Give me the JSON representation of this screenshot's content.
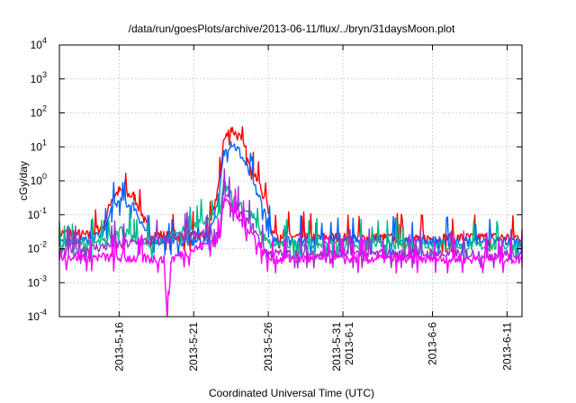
{
  "chart_data": {
    "type": "line",
    "title": "/data/run/goesPlots/archive/2013-06-11/flux/../bryn/31daysMoon.plot",
    "xlabel": "Coordinated Universal Time (UTC)",
    "ylabel": "cGy/day",
    "y_scale": "log",
    "ylim": [
      0.0001,
      10000
    ],
    "xlim": [
      "2013-05-12",
      "2013-06-12"
    ],
    "grid": true,
    "legend": "none",
    "y_ticks": [
      {
        "base": "10",
        "exp": "-4"
      },
      {
        "base": "10",
        "exp": "-3"
      },
      {
        "base": "10",
        "exp": "-2"
      },
      {
        "base": "10",
        "exp": "-1"
      },
      {
        "base": "10",
        "exp": "0"
      },
      {
        "base": "10",
        "exp": "1"
      },
      {
        "base": "10",
        "exp": "2"
      },
      {
        "base": "10",
        "exp": "3"
      },
      {
        "base": "10",
        "exp": "4"
      }
    ],
    "x_ticks": [
      {
        "date": "2013-05-16",
        "labels": [
          "2013-5-16"
        ]
      },
      {
        "date": "2013-05-21",
        "labels": [
          "2013-5-21"
        ]
      },
      {
        "date": "2013-05-26",
        "labels": [
          "2013-5-26"
        ]
      },
      {
        "date": "2013-05-31",
        "labels": [
          "2013-5-31",
          "2013-6-1"
        ]
      },
      {
        "date": "2013-06-06",
        "labels": [
          "2013-6-6"
        ]
      },
      {
        "date": "2013-06-11",
        "labels": [
          "2013-6-11"
        ]
      }
    ],
    "series": [
      {
        "color": "#ff0000",
        "base": 0.022,
        "points": [
          [
            "2013-05-12",
            0.03
          ],
          [
            "2013-05-14",
            0.024
          ],
          [
            "2013-05-15",
            0.05
          ],
          [
            "2013-05-15T12:00",
            0.3
          ],
          [
            "2013-05-16",
            0.5
          ],
          [
            "2013-05-17",
            0.35
          ],
          [
            "2013-05-17T12:00",
            0.12
          ],
          [
            "2013-05-18",
            0.03
          ],
          [
            "2013-05-19",
            0.024
          ],
          [
            "2013-05-21",
            0.022
          ],
          [
            "2013-05-22",
            0.025
          ],
          [
            "2013-05-22T18:00",
            1.2
          ],
          [
            "2013-05-23",
            15
          ],
          [
            "2013-05-23T12:00",
            35
          ],
          [
            "2013-05-24",
            20
          ],
          [
            "2013-05-24T12:00",
            8
          ],
          [
            "2013-05-25",
            2
          ],
          [
            "2013-05-25T12:00",
            0.6
          ],
          [
            "2013-05-26",
            0.15
          ],
          [
            "2013-05-26T06:00",
            0.03
          ],
          [
            "2013-05-28",
            0.022
          ],
          [
            "2013-06-05",
            0.02
          ],
          [
            "2013-06-12",
            0.022
          ]
        ]
      },
      {
        "color": "#0066ff",
        "base": 0.016,
        "points": [
          [
            "2013-05-12",
            0.02
          ],
          [
            "2013-05-14",
            0.017
          ],
          [
            "2013-05-15",
            0.03
          ],
          [
            "2013-05-15T12:00",
            0.15
          ],
          [
            "2013-05-16",
            0.25
          ],
          [
            "2013-05-17",
            0.18
          ],
          [
            "2013-05-17T12:00",
            0.06
          ],
          [
            "2013-05-18",
            0.02
          ],
          [
            "2013-05-19",
            0.017
          ],
          [
            "2013-05-21",
            0.016
          ],
          [
            "2013-05-22",
            0.02
          ],
          [
            "2013-05-22T18:00",
            0.5
          ],
          [
            "2013-05-23",
            6
          ],
          [
            "2013-05-23T12:00",
            14
          ],
          [
            "2013-05-24",
            8
          ],
          [
            "2013-05-24T12:00",
            3
          ],
          [
            "2013-05-25",
            0.8
          ],
          [
            "2013-05-25T12:00",
            0.25
          ],
          [
            "2013-05-26",
            0.06
          ],
          [
            "2013-05-26T06:00",
            0.018
          ],
          [
            "2013-06-12",
            0.016
          ]
        ]
      },
      {
        "color": "#00bb88",
        "base": 0.012,
        "points": [
          [
            "2013-05-12",
            0.014
          ],
          [
            "2013-05-15",
            0.015
          ],
          [
            "2013-05-16",
            0.04
          ],
          [
            "2013-05-17",
            0.02
          ],
          [
            "2013-05-18",
            0.012
          ],
          [
            "2013-05-22T18:00",
            0.1
          ],
          [
            "2013-05-23",
            0.8
          ],
          [
            "2013-05-23T12:00",
            0.4
          ],
          [
            "2013-05-24",
            0.25
          ],
          [
            "2013-05-25",
            0.08
          ],
          [
            "2013-05-25T12:00",
            0.03
          ],
          [
            "2013-05-26",
            0.014
          ],
          [
            "2013-06-12",
            0.012
          ]
        ]
      },
      {
        "color": "#9933cc",
        "base": 0.007,
        "points": [
          [
            "2013-05-12",
            0.008
          ],
          [
            "2013-05-22T18:00",
            0.03
          ],
          [
            "2013-05-23",
            0.5
          ],
          [
            "2013-05-23T12:00",
            0.2
          ],
          [
            "2013-05-24",
            0.12
          ],
          [
            "2013-05-25",
            0.04
          ],
          [
            "2013-05-25T12:00",
            0.015
          ],
          [
            "2013-05-26",
            0.007
          ],
          [
            "2013-06-12",
            0.007
          ]
        ]
      },
      {
        "color": "#ff00ff",
        "base": 0.005,
        "points": [
          [
            "2013-05-12",
            0.006
          ],
          [
            "2013-05-19",
            0.005
          ],
          [
            "2013-05-19T06:00",
            0.0001
          ],
          [
            "2013-05-19T12:00",
            0.005
          ],
          [
            "2013-05-22T18:00",
            0.02
          ],
          [
            "2013-05-23",
            0.4
          ],
          [
            "2013-05-23T12:00",
            0.15
          ],
          [
            "2013-05-24",
            0.08
          ],
          [
            "2013-05-25",
            0.025
          ],
          [
            "2013-05-25T12:00",
            0.01
          ],
          [
            "2013-05-26",
            0.005
          ],
          [
            "2013-06-12",
            0.005
          ]
        ]
      }
    ]
  }
}
